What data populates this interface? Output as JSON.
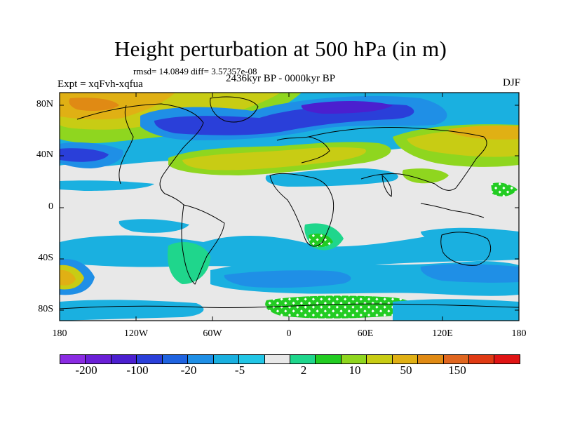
{
  "title": "Height perturbation at 500 hPa (in m)",
  "stats": "rmsd= 14.0849 diff= 3.57357e-08",
  "expt": "Expt = xqFvh-xqfua",
  "period": "2436kyr BP - 0000kyr BP",
  "season": "DJF",
  "lat_labels": [
    "80N",
    "40N",
    "0",
    "40S",
    "80S"
  ],
  "lon_labels": [
    "180",
    "120W",
    "60W",
    "0",
    "60E",
    "120E",
    "180"
  ],
  "colorbar": {
    "labels": [
      "-200",
      "-100",
      "-20",
      "-5",
      "2",
      "10",
      "50",
      "150"
    ],
    "colors": [
      "#8a2be2",
      "#6a1fd6",
      "#4b1fcf",
      "#2a3fd9",
      "#1f63e0",
      "#1f8fe6",
      "#1ab0e0",
      "#22c6e6",
      "#e8e8e8",
      "#1fd68c",
      "#22cc22",
      "#8fd61f",
      "#c8cc14",
      "#e0b014",
      "#e08a14",
      "#e0661f",
      "#e03a14",
      "#e01414"
    ]
  },
  "legend_colors": {
    "background": "#e8e8e8",
    "deep_blue": "#2a3fd9",
    "mid_blue": "#1f8fe6",
    "light_blue": "#1ab0e0",
    "green": "#1fd68c",
    "light_green": "#8fd61f",
    "yellow": "#c8cc14",
    "orange": "#e0b014"
  }
}
